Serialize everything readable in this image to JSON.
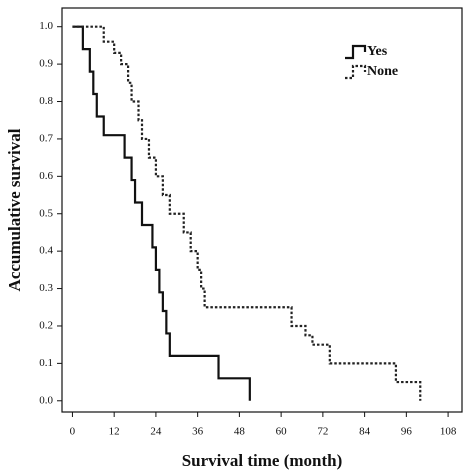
{
  "chart_data": {
    "type": "step",
    "xlabel": "Survival time  (month)",
    "ylabel": "Accumulative survival",
    "xlim": [
      -3,
      112
    ],
    "ylim": [
      -0.03,
      1.05
    ],
    "xticks": [
      0,
      12,
      24,
      36,
      48,
      60,
      72,
      84,
      96,
      108
    ],
    "yticks": [
      {
        "value": 0,
        "label": "0.0"
      },
      0.1,
      0.2,
      0.3,
      0.4,
      0.5,
      0.6,
      0.7,
      0.8,
      0.9,
      {
        "value": 1,
        "label": "1.0"
      }
    ],
    "legend": "top-right",
    "series": [
      {
        "name": "Yes",
        "color": "#111111",
        "dash": "solid",
        "x": [
          0,
          3,
          5,
          6,
          7,
          9,
          15,
          17,
          18,
          20,
          23,
          24,
          25,
          26,
          27,
          28,
          42,
          51
        ],
        "values": [
          1,
          0.94,
          0.88,
          0.82,
          0.76,
          0.71,
          0.65,
          0.59,
          0.53,
          0.47,
          0.41,
          0.35,
          0.29,
          0.24,
          0.18,
          0.12,
          0.06,
          0
        ]
      },
      {
        "name": "None",
        "color": "#222222",
        "dash": "dotted",
        "x": [
          0,
          9,
          12,
          14,
          16,
          17,
          19,
          20,
          22,
          24,
          26,
          28,
          32,
          34,
          36,
          37,
          38,
          63,
          67,
          69,
          74,
          93,
          100
        ],
        "values": [
          1,
          0.96,
          0.93,
          0.9,
          0.85,
          0.8,
          0.75,
          0.7,
          0.65,
          0.6,
          0.55,
          0.5,
          0.45,
          0.4,
          0.35,
          0.3,
          0.25,
          0.2,
          0.175,
          0.15,
          0.1,
          0.05,
          0
        ]
      }
    ]
  }
}
